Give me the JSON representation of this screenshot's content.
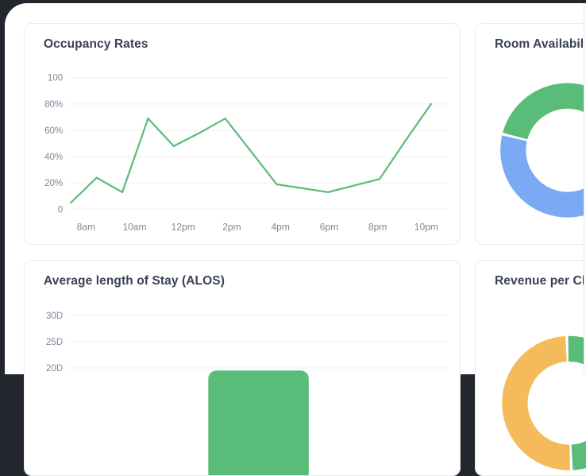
{
  "page": {
    "chrome_color": "#23262c",
    "panel_background": "#ffffff",
    "card_border_color": "#e9ebee",
    "accent_green": "#5abc79",
    "accent_blue": "#7ca9f4",
    "accent_yellow": "#f5ba5a"
  },
  "cards": {
    "occupancy": {
      "title": "Occupancy Rates"
    },
    "availability": {
      "title": "Room Availability"
    },
    "alos": {
      "title": "Average length of Stay (ALOS)"
    },
    "revenue": {
      "title": "Revenue per Channel"
    }
  },
  "chart_data": [
    {
      "id": "occupancy",
      "type": "line",
      "title": "Occupancy Rates",
      "color": "#5abc79",
      "x": [
        "8am",
        "9am",
        "10am",
        "11am",
        "12pm",
        "1pm",
        "2pm",
        "3pm",
        "4pm",
        "5pm",
        "6pm",
        "7pm",
        "8pm",
        "9pm",
        "10pm"
      ],
      "values": [
        5,
        24,
        13,
        69,
        48,
        58,
        69,
        44,
        19,
        16,
        13,
        18,
        23,
        52,
        80
      ],
      "x_tick_labels": [
        "8am",
        "10am",
        "12pm",
        "2pm",
        "4pm",
        "6pm",
        "8pm",
        "10pm"
      ],
      "y_ticks": [
        {
          "label": "100",
          "value": 100
        },
        {
          "label": "80%",
          "value": 80
        },
        {
          "label": "60%",
          "value": 60
        },
        {
          "label": "40%",
          "value": 40
        },
        {
          "label": "20%",
          "value": 20
        },
        {
          "label": "0",
          "value": 0
        }
      ],
      "ylim": [
        0,
        100
      ],
      "grid": true,
      "legend": "none",
      "unit": "%"
    },
    {
      "id": "availability",
      "type": "donut",
      "title": "Room Availability",
      "start_angle_deg": 284,
      "segments": [
        {
          "color": "#5abc79",
          "percent": 38
        },
        {
          "color": "#7ca9f4",
          "percent": 62
        }
      ],
      "clipped": true
    },
    {
      "id": "alos",
      "type": "bar",
      "title": "Average length of Stay (ALOS)",
      "color": "#5abc79",
      "unit": "days",
      "y_ticks": [
        {
          "label": "30D",
          "value": 30
        },
        {
          "label": "25D",
          "value": 25
        },
        {
          "label": "20D",
          "value": 20
        }
      ],
      "bars": [
        {
          "value": 19.5
        }
      ],
      "grid": true,
      "clipped": true
    },
    {
      "id": "revenue",
      "type": "donut",
      "title": "Revenue per Channel",
      "start_angle_deg": 178,
      "segments": [
        {
          "color": "#f5ba5a",
          "percent": 50
        },
        {
          "color": "#5abc79",
          "percent": 50
        }
      ],
      "clipped": true
    }
  ]
}
